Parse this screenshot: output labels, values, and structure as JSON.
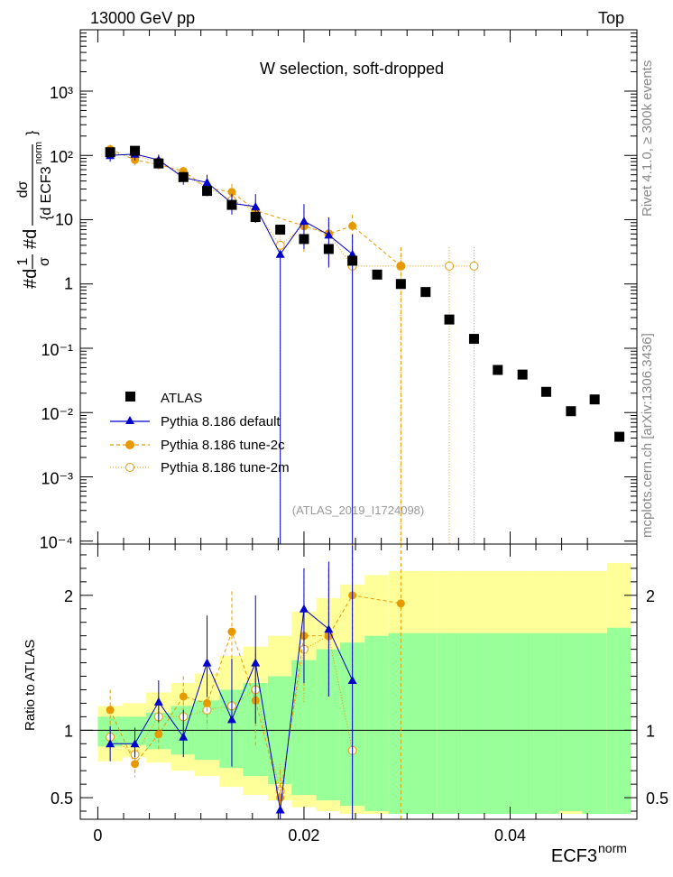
{
  "header": {
    "energy_label": "13000 GeV pp",
    "category_label": "Top",
    "side_label_top": "Rivet 4.1.0, ≥ 300k events",
    "side_label_bottom": "mcplots.cern.ch [arXiv:1306.3436]",
    "analysis_label": "(ATLAS_2019_I1724098)"
  },
  "colors": {
    "data": "#000000",
    "default": "#0000cc",
    "tune2c": "#e69a00",
    "tune2m": "#e69a00",
    "band_stat": "#99ff99",
    "band_total": "#ffff99"
  },
  "chart_data": [
    {
      "type": "scatter",
      "title": "W selection, soft-dropped",
      "xlabel": "ECF3",
      "xlabel_sup": "norm",
      "ylabel": "#d1/σ #d dσ/{d ECF3^norm}",
      "yscale": "log",
      "ylim": [
        9e-05,
        9000
      ],
      "xlim": [
        -0.0017,
        0.0523
      ],
      "ytick_labels": [
        "10⁻⁴",
        "10⁻³",
        "10⁻²",
        "10⁻¹",
        "1",
        "10",
        "10²",
        "10³"
      ],
      "legend": [
        "ATLAS",
        "Pythia 8.186 default",
        "Pythia 8.186 tune-2c",
        "Pythia 8.186 tune-2m"
      ],
      "series": [
        {
          "name": "ATLAS",
          "x": [
            0.0012,
            0.0036,
            0.0059,
            0.0083,
            0.0106,
            0.013,
            0.0153,
            0.0177,
            0.02,
            0.0224,
            0.0247,
            0.0271,
            0.0294,
            0.0318,
            0.0341,
            0.0365,
            0.0388,
            0.0412,
            0.0435,
            0.0459,
            0.0482,
            0.0506
          ],
          "y": [
            112,
            118,
            75,
            46,
            28,
            17,
            11,
            7,
            5,
            3.5,
            2.3,
            1.4,
            1.0,
            0.75,
            0.28,
            0.14,
            0.046,
            0.039,
            0.021,
            0.0105,
            0.016,
            0.0042
          ]
        },
        {
          "name": "Pythia 8.186 default",
          "x": [
            0.0012,
            0.0036,
            0.0059,
            0.0083,
            0.0106,
            0.013,
            0.0153,
            0.0177,
            0.02,
            0.0224,
            0.0247
          ],
          "y": [
            100,
            105,
            85,
            45,
            38,
            18,
            16,
            2.9,
            9.5,
            5.8,
            2.9
          ],
          "yerr_low": [
            20,
            22,
            18,
            10,
            10,
            6,
            7,
            2.9,
            6,
            4,
            2.9
          ],
          "yerr_high": [
            20,
            22,
            18,
            10,
            12,
            7,
            9,
            0,
            8,
            5,
            3
          ]
        },
        {
          "name": "Pythia 8.186 tune-2c",
          "x": [
            0.0012,
            0.0036,
            0.0059,
            0.0083,
            0.0106,
            0.013,
            0.0153,
            0.0177,
            0.02,
            0.0224,
            0.0247,
            0.0294
          ],
          "y": [
            125,
            85,
            72,
            57,
            31,
            27,
            14,
            0,
            8,
            6,
            8,
            1.9
          ],
          "yerr_low": [
            20,
            15,
            12,
            10,
            8,
            8,
            5,
            0,
            5,
            4,
            5,
            1.9
          ],
          "yerr_high": [
            22,
            15,
            12,
            10,
            8,
            9,
            6,
            0,
            6,
            5,
            4,
            1.8
          ]
        },
        {
          "name": "Pythia 8.186 tune-2m",
          "x": [
            0.0012,
            0.0036,
            0.0059,
            0.0083,
            0.0106,
            0.013,
            0.0153,
            0.0177,
            0.02,
            0.0224,
            0.0247,
            0.0294,
            0.0341,
            0.0365
          ],
          "y": [
            108,
            98,
            80,
            50,
            32,
            20,
            14,
            4,
            8,
            6,
            1.9,
            1.9,
            1.9,
            1.9
          ],
          "yerr_low": [
            18,
            15,
            12,
            10,
            8,
            6,
            5,
            4,
            5,
            4,
            1.9,
            1.9,
            1.9,
            1.9
          ],
          "yerr_high": [
            18,
            15,
            12,
            10,
            8,
            6,
            6,
            4,
            6,
            5,
            2,
            1.8,
            1.8,
            1.8
          ]
        }
      ]
    },
    {
      "type": "scatter",
      "title": "",
      "xlabel": "ECF3",
      "ylabel": "Ratio to ATLAS",
      "ylim": [
        0.34,
        2.38
      ],
      "xlim": [
        -0.0017,
        0.0523
      ],
      "xticks": [
        0,
        0.02,
        0.04
      ],
      "xtick_labels": [
        "0",
        "0.02",
        "0.04"
      ],
      "yticks": [
        0.5,
        1,
        2
      ],
      "ytick_labels": [
        "0.5",
        "1",
        "2"
      ],
      "bands": {
        "x_edges": [
          0,
          0.0024,
          0.0047,
          0.0071,
          0.0094,
          0.0118,
          0.0141,
          0.0165,
          0.0188,
          0.0212,
          0.0235,
          0.0259,
          0.0282,
          0.0306,
          0.0329,
          0.0353,
          0.0376,
          0.04,
          0.0423,
          0.0447,
          0.047,
          0.0494,
          0.0517
        ],
        "stat_low": [
          0.88,
          0.89,
          0.86,
          0.82,
          0.78,
          0.72,
          0.66,
          0.6,
          0.52,
          0.48,
          0.44,
          0.4,
          0.38,
          0.38,
          0.38,
          0.38,
          0.38,
          0.38,
          0.38,
          0.4,
          0.38,
          0.38
        ],
        "stat_high": [
          1.1,
          1.1,
          1.13,
          1.18,
          1.22,
          1.3,
          1.35,
          1.4,
          1.52,
          1.6,
          1.65,
          1.7,
          1.72,
          1.72,
          1.72,
          1.72,
          1.72,
          1.72,
          1.72,
          1.72,
          1.72,
          1.76
        ],
        "tot_low": [
          0.77,
          0.8,
          0.76,
          0.7,
          0.66,
          0.58,
          0.52,
          0.48,
          0.43,
          0.4,
          0.38,
          0.38,
          0.38,
          0.38,
          0.38,
          0.38,
          0.38,
          0.38,
          0.38,
          0.38,
          0.38,
          0.38
        ],
        "tot_high": [
          1.18,
          1.2,
          1.28,
          1.35,
          1.42,
          1.55,
          1.62,
          1.7,
          1.88,
          1.98,
          2.08,
          2.15,
          2.18,
          2.18,
          2.18,
          2.18,
          2.18,
          2.18,
          2.18,
          2.18,
          2.18,
          2.24
        ]
      },
      "series": [
        {
          "name": "Pythia 8.186 default",
          "x": [
            0.0012,
            0.0036,
            0.0059,
            0.0083,
            0.0106,
            0.013,
            0.0153,
            0.0177,
            0.02,
            0.0224,
            0.0247
          ],
          "y": [
            0.9,
            0.9,
            1.21,
            0.95,
            1.5,
            1.08,
            1.5,
            0.41,
            1.9,
            1.75,
            1.37
          ],
          "yerr_low": [
            0.13,
            0.1,
            0.15,
            0.15,
            0.25,
            0.35,
            0.45,
            0.41,
            0.55,
            0.5,
            1.37
          ],
          "yerr_high": [
            0.13,
            0.12,
            0.16,
            0.2,
            0.35,
            0.45,
            0.5,
            0.0,
            0.3,
            0.5,
            1.0
          ]
        },
        {
          "name": "Pythia 8.186 tune-2c",
          "x": [
            0.0012,
            0.0036,
            0.0059,
            0.0083,
            0.0106,
            0.013,
            0.0153,
            0.0177,
            0.02,
            0.0224,
            0.0247,
            0.0294
          ],
          "y": [
            1.15,
            0.75,
            0.97,
            1.25,
            1.2,
            1.73,
            1.22,
            0.5,
            1.7,
            1.7,
            2.0,
            1.94
          ],
          "yerr_low": [
            0.15,
            0.1,
            0.12,
            0.15,
            0.15,
            0.25,
            0.35,
            0.2,
            0.4,
            0.45,
            0.6,
            1.94
          ],
          "yerr_high": [
            0.15,
            0.1,
            0.15,
            0.15,
            0.2,
            0.3,
            0.35,
            0.2,
            0.5,
            0.5,
            0.5,
            0.5
          ]
        },
        {
          "name": "Pythia 8.186 tune-2m",
          "x": [
            0.0012,
            0.0036,
            0.0059,
            0.0083,
            0.0106,
            0.013,
            0.0153,
            0.0177,
            0.02,
            0.0224,
            0.0247
          ],
          "y": [
            0.95,
            0.82,
            1.1,
            1.1,
            1.15,
            1.18,
            1.3,
            0.55,
            1.6,
            1.7,
            0.85
          ],
          "yerr_low": [
            0.12,
            0.1,
            0.12,
            0.12,
            0.15,
            0.15,
            0.25,
            0.2,
            0.4,
            0.45,
            0.85
          ],
          "yerr_high": [
            0.12,
            0.1,
            0.12,
            0.12,
            0.15,
            0.2,
            0.3,
            0.2,
            0.4,
            0.5,
            0.6
          ]
        }
      ]
    }
  ]
}
